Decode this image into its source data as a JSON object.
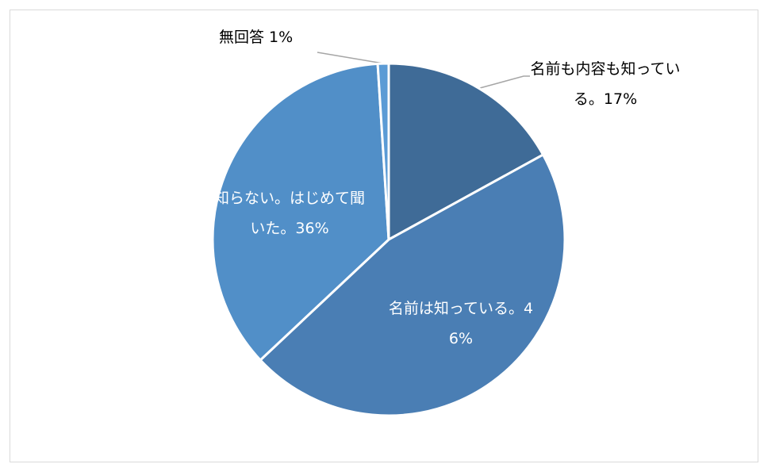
{
  "chart_data": {
    "type": "pie",
    "categories": [
      "名前も内容も知っている。",
      "名前は知っている。",
      "知らない。はじめて聞いた。",
      "無回答"
    ],
    "values": [
      17,
      46,
      36,
      1
    ],
    "value_labels": [
      "17%",
      "46%",
      "36%",
      "1%"
    ],
    "colors": [
      "#3f6b97",
      "#4a7eb4",
      "#518fc8",
      "#5b9bd5"
    ]
  }
}
